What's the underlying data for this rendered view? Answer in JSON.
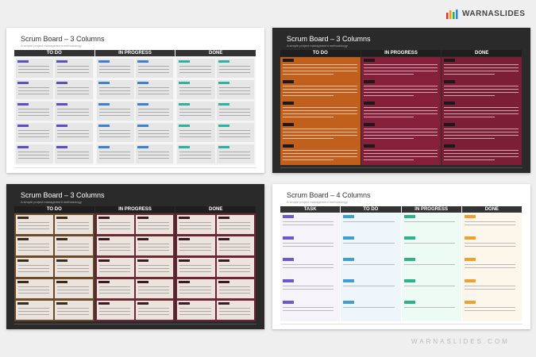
{
  "brand": "WARNASLIDES",
  "footer": "WARNASLIDES.COM",
  "slides": [
    {
      "title": "Scrum Board – 3 Columns",
      "subtitle": "A simple project management methodology",
      "columns": [
        "TO DO",
        "IN PROGRESS",
        "DONE"
      ]
    },
    {
      "title": "Scrum Board – 3 Columns",
      "subtitle": "A simple project management methodology",
      "columns": [
        "TO DO",
        "IN PROGRESS",
        "DONE"
      ]
    },
    {
      "title": "Scrum Board – 3 Columns",
      "subtitle": "A simple project management methodology",
      "columns": [
        "TO DO",
        "IN PROGRESS",
        "DONE"
      ]
    },
    {
      "title": "Scrum Board – 4 Columns",
      "subtitle": "A simple project management methodology",
      "columns": [
        "TASK",
        "TO DO",
        "IN PROGRESS",
        "DONE"
      ]
    }
  ]
}
